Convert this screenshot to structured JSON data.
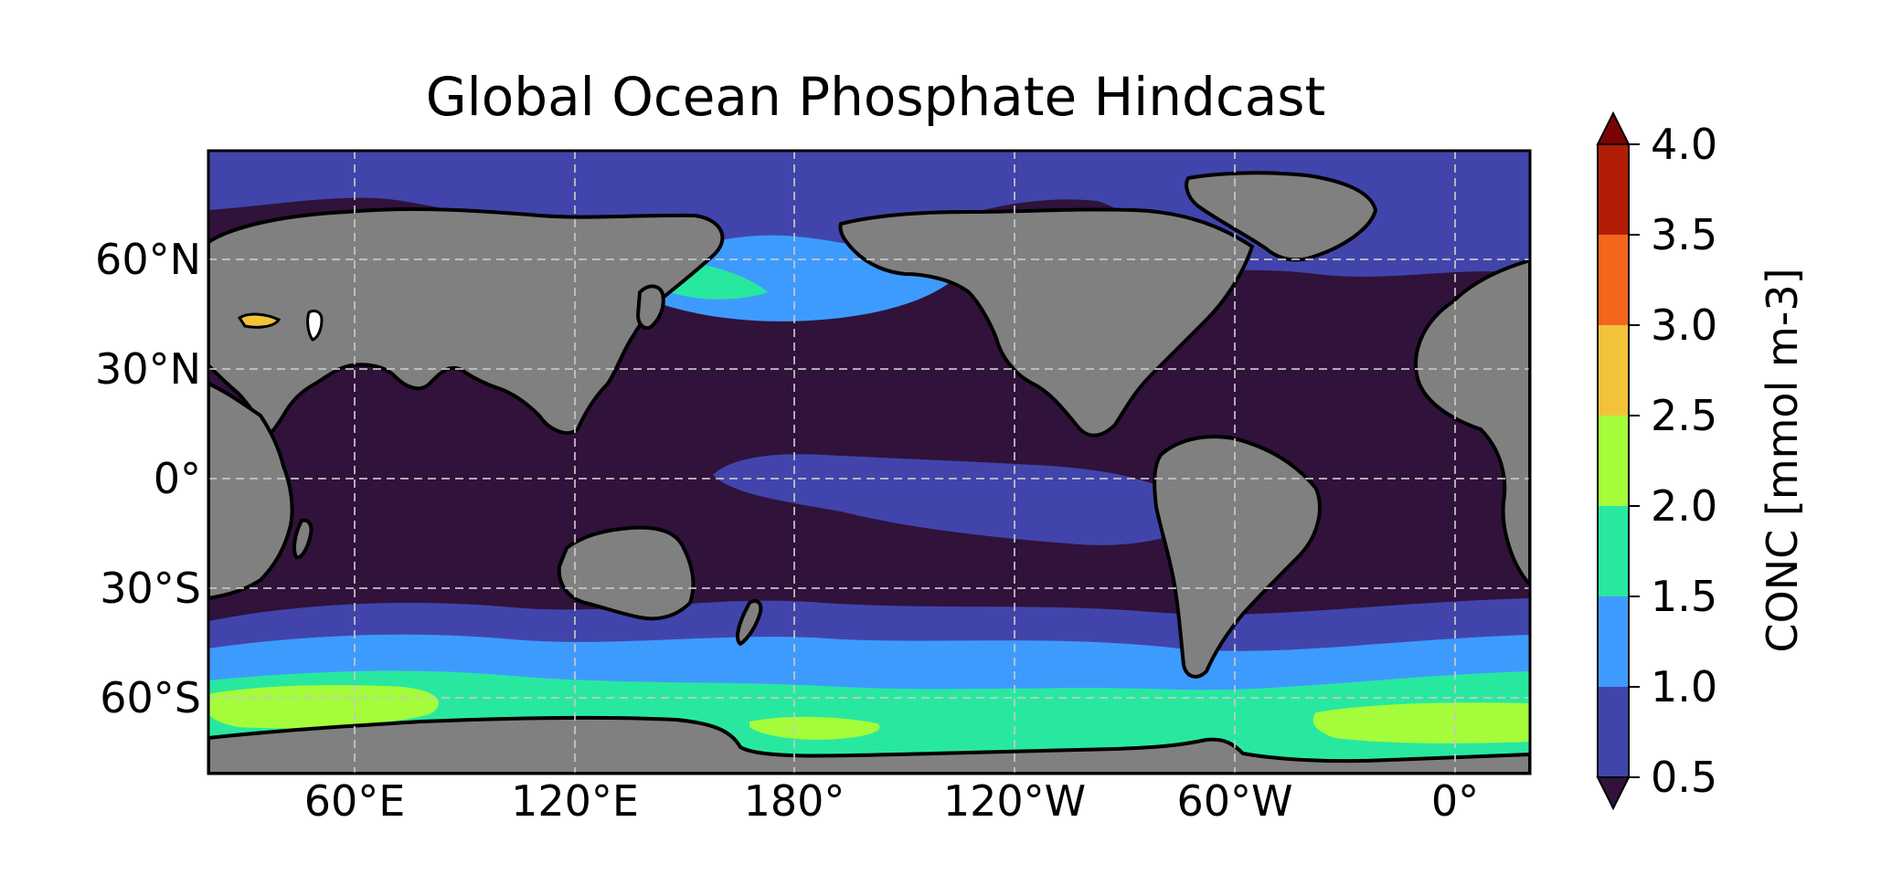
{
  "title": "Global Ocean Phosphate Hindcast",
  "map": {
    "projection": "PlateCarree",
    "longitude_labels": [
      "60°E",
      "120°E",
      "180°",
      "120°W",
      "60°W",
      "0°"
    ],
    "latitude_labels": [
      "60°N",
      "30°N",
      "0°",
      "30°S",
      "60°S"
    ],
    "gridlines": "dashed",
    "land_color": "#808080",
    "coastline_color": "#000000"
  },
  "colorbar": {
    "label": "CONC [mmol m-3]",
    "ticks": [
      "4.0",
      "3.5",
      "3.0",
      "2.5",
      "2.0",
      "1.5",
      "1.0",
      "0.5"
    ],
    "extend": "both",
    "under_color": "#30123b",
    "over_color": "#7a0403",
    "levels": [
      {
        "range": [
          0.5,
          1.0
        ],
        "color": "#4145ab"
      },
      {
        "range": [
          1.0,
          1.5
        ],
        "color": "#3e9bfe"
      },
      {
        "range": [
          1.5,
          2.0
        ],
        "color": "#28e8a0"
      },
      {
        "range": [
          2.0,
          2.5
        ],
        "color": "#a4fc3b"
      },
      {
        "range": [
          2.5,
          3.0
        ],
        "color": "#f2c33a"
      },
      {
        "range": [
          3.0,
          3.5
        ],
        "color": "#f3661c"
      },
      {
        "range": [
          3.5,
          4.0
        ],
        "color": "#b21d07"
      }
    ]
  }
}
